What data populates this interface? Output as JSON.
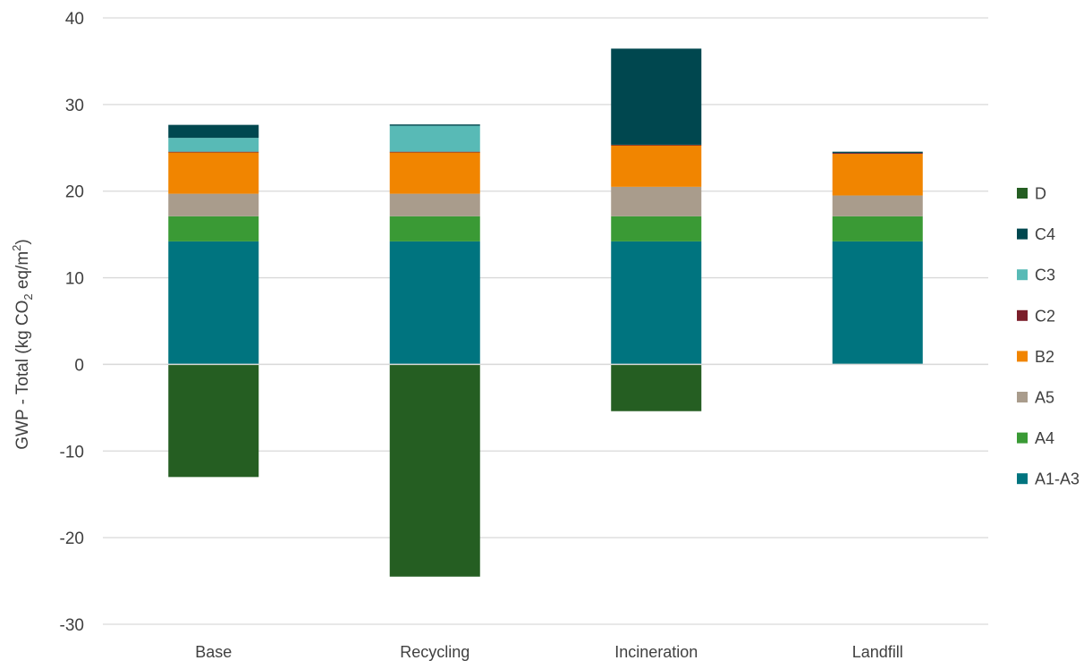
{
  "chart_data": {
    "type": "bar",
    "stacked": true,
    "categories": [
      "Base",
      "Recycling",
      "Incineration",
      "Landfill"
    ],
    "ylabel": {
      "prefix": "GWP - Total (kg CO",
      "sub": "2",
      "middle": " eq/m",
      "sup": "2",
      "suffix": ")"
    },
    "ylim": [
      -30,
      40
    ],
    "yticks": [
      -30,
      -20,
      -10,
      0,
      10,
      20,
      30,
      40
    ],
    "grid": true,
    "legend_position": "right",
    "series": [
      {
        "name": "A1-A3",
        "color": "#00747F",
        "values": [
          14.2,
          14.2,
          14.2,
          14.2
        ]
      },
      {
        "name": "A4",
        "color": "#3A9A35",
        "values": [
          2.9,
          2.9,
          2.9,
          2.9
        ]
      },
      {
        "name": "A5",
        "color": "#A99C8C",
        "values": [
          2.6,
          2.6,
          3.4,
          2.4
        ]
      },
      {
        "name": "B2",
        "color": "#F18500",
        "values": [
          4.8,
          4.8,
          4.8,
          4.8
        ]
      },
      {
        "name": "C2",
        "color": "#7B1E2A",
        "values": [
          0.05,
          0.05,
          0.05,
          0.1
        ]
      },
      {
        "name": "C3",
        "color": "#58BAB6",
        "values": [
          1.6,
          3.0,
          0.0,
          0.0
        ]
      },
      {
        "name": "C4",
        "color": "#00474F",
        "values": [
          1.5,
          0.15,
          11.1,
          0.15
        ]
      },
      {
        "name": "D",
        "color": "#255E22",
        "values": [
          -13.0,
          -24.5,
          -5.4,
          0.0
        ]
      }
    ],
    "legend_order": [
      "D",
      "C4",
      "C3",
      "C2",
      "B2",
      "A5",
      "A4",
      "A1-A3"
    ]
  }
}
